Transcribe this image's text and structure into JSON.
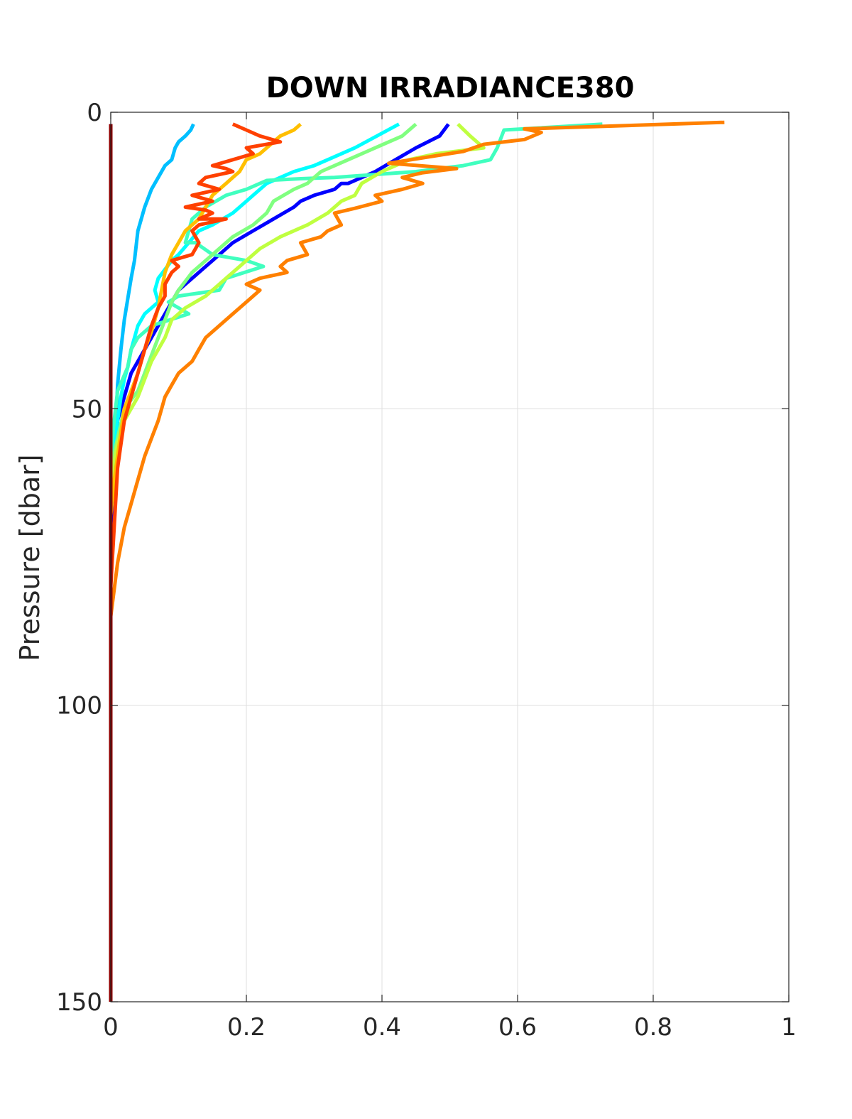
{
  "chart_data": {
    "type": "line",
    "title": "DOWN IRRADIANCE380",
    "xlabel": "",
    "ylabel": "Pressure [dbar]",
    "xlim": [
      0,
      1
    ],
    "ylim": [
      0,
      150
    ],
    "y_reversed": true,
    "grid": true,
    "legend": "none",
    "xticks": [
      "0",
      "0.2",
      "0.4",
      "0.6",
      "0.8",
      "1"
    ],
    "yticks": [
      "0",
      "50",
      "100",
      "150"
    ],
    "series": [
      {
        "color": "#00008f",
        "points": [
          [
            0,
            2
          ],
          [
            0,
            20
          ],
          [
            0,
            50
          ],
          [
            0,
            80
          ],
          [
            0,
            100
          ],
          [
            0,
            120
          ],
          [
            0,
            150
          ]
        ]
      },
      {
        "color": "#0000ff",
        "points": [
          [
            0.498,
            2
          ],
          [
            0.485,
            4
          ],
          [
            0.45,
            6
          ],
          [
            0.42,
            8
          ],
          [
            0.39,
            10
          ],
          [
            0.35,
            12
          ],
          [
            0.34,
            12
          ],
          [
            0.33,
            13
          ],
          [
            0.3,
            14
          ],
          [
            0.28,
            15
          ],
          [
            0.27,
            16
          ],
          [
            0.24,
            18
          ],
          [
            0.21,
            20
          ],
          [
            0.18,
            22
          ],
          [
            0.15,
            25
          ],
          [
            0.12,
            28
          ],
          [
            0.1,
            30
          ],
          [
            0.075,
            35
          ],
          [
            0.05,
            40
          ],
          [
            0.03,
            44
          ],
          [
            0.02,
            48
          ],
          [
            0.01,
            52
          ],
          [
            0.005,
            60
          ],
          [
            0,
            70
          ]
        ]
      },
      {
        "color": "#00bfff",
        "points": [
          [
            0.122,
            2
          ],
          [
            0.118,
            3
          ],
          [
            0.11,
            4
          ],
          [
            0.1,
            5
          ],
          [
            0.095,
            6
          ],
          [
            0.09,
            8
          ],
          [
            0.08,
            9
          ],
          [
            0.075,
            10
          ],
          [
            0.06,
            13
          ],
          [
            0.05,
            16
          ],
          [
            0.04,
            20
          ],
          [
            0.035,
            25
          ],
          [
            0.03,
            28
          ],
          [
            0.02,
            35
          ],
          [
            0.015,
            40
          ],
          [
            0.01,
            46
          ],
          [
            0.008,
            52
          ],
          [
            0.005,
            58
          ],
          [
            0,
            65
          ]
        ]
      },
      {
        "color": "#00ffff",
        "points": [
          [
            0.425,
            2
          ],
          [
            0.36,
            6
          ],
          [
            0.32,
            8
          ],
          [
            0.3,
            9
          ],
          [
            0.27,
            10
          ],
          [
            0.25,
            11
          ],
          [
            0.23,
            12
          ],
          [
            0.21,
            14
          ],
          [
            0.2,
            15
          ],
          [
            0.18,
            17
          ],
          [
            0.15,
            19
          ],
          [
            0.13,
            20
          ],
          [
            0.1,
            24
          ],
          [
            0.09,
            25
          ],
          [
            0.07,
            28
          ],
          [
            0.065,
            30
          ],
          [
            0.07,
            32
          ],
          [
            0.05,
            34
          ],
          [
            0.04,
            36
          ],
          [
            0.03,
            40
          ],
          [
            0.025,
            43
          ],
          [
            0.02,
            45
          ],
          [
            0.015,
            48
          ],
          [
            0.01,
            52
          ],
          [
            0.005,
            56
          ],
          [
            0,
            60
          ]
        ]
      },
      {
        "color": "#40ffbf",
        "points": [
          [
            0.725,
            2
          ],
          [
            0.58,
            3
          ],
          [
            0.57,
            6
          ],
          [
            0.56,
            8
          ],
          [
            0.52,
            9
          ],
          [
            0.45,
            10
          ],
          [
            0.33,
            11
          ],
          [
            0.28,
            11.2
          ],
          [
            0.23,
            11.5
          ],
          [
            0.22,
            12
          ],
          [
            0.2,
            13
          ],
          [
            0.17,
            14
          ],
          [
            0.14,
            16
          ],
          [
            0.12,
            18
          ],
          [
            0.115,
            20
          ],
          [
            0.11,
            22
          ],
          [
            0.125,
            22
          ],
          [
            0.15,
            24
          ],
          [
            0.2,
            25
          ],
          [
            0.225,
            26
          ],
          [
            0.17,
            28
          ],
          [
            0.16,
            30
          ],
          [
            0.1,
            31
          ],
          [
            0.085,
            32
          ],
          [
            0.1,
            33
          ],
          [
            0.115,
            34
          ],
          [
            0.06,
            36
          ],
          [
            0.04,
            38
          ],
          [
            0.03,
            40
          ],
          [
            0.025,
            43
          ],
          [
            0.01,
            47
          ],
          [
            0.005,
            52
          ],
          [
            0,
            58
          ]
        ]
      },
      {
        "color": "#80ff80",
        "points": [
          [
            0.45,
            2
          ],
          [
            0.43,
            4
          ],
          [
            0.39,
            6
          ],
          [
            0.35,
            8
          ],
          [
            0.31,
            10
          ],
          [
            0.29,
            12
          ],
          [
            0.27,
            13
          ],
          [
            0.24,
            15
          ],
          [
            0.23,
            17
          ],
          [
            0.21,
            19
          ],
          [
            0.18,
            21
          ],
          [
            0.16,
            23
          ],
          [
            0.14,
            25
          ],
          [
            0.12,
            27
          ],
          [
            0.1,
            30
          ],
          [
            0.09,
            32
          ],
          [
            0.08,
            35
          ],
          [
            0.07,
            38
          ],
          [
            0.06,
            41
          ],
          [
            0.05,
            44
          ],
          [
            0.04,
            47
          ],
          [
            0.02,
            50
          ],
          [
            0.01,
            55
          ],
          [
            0,
            60
          ]
        ]
      },
      {
        "color": "#bfff40",
        "points": [
          [
            0.512,
            2
          ],
          [
            0.53,
            4
          ],
          [
            0.55,
            6
          ],
          [
            0.48,
            7
          ],
          [
            0.44,
            8
          ],
          [
            0.42,
            9
          ],
          [
            0.4,
            10
          ],
          [
            0.37,
            12
          ],
          [
            0.36,
            14
          ],
          [
            0.34,
            15
          ],
          [
            0.32,
            17
          ],
          [
            0.29,
            19
          ],
          [
            0.25,
            21
          ],
          [
            0.22,
            23
          ],
          [
            0.2,
            25
          ],
          [
            0.18,
            27
          ],
          [
            0.16,
            29
          ],
          [
            0.14,
            31
          ],
          [
            0.11,
            33
          ],
          [
            0.09,
            35
          ],
          [
            0.08,
            38
          ],
          [
            0.07,
            40
          ],
          [
            0.06,
            42
          ],
          [
            0.05,
            45
          ],
          [
            0.04,
            48
          ],
          [
            0.02,
            52
          ],
          [
            0.01,
            56
          ],
          [
            0,
            62
          ]
        ]
      },
      {
        "color": "#ffbf00",
        "points": [
          [
            0.28,
            2
          ],
          [
            0.27,
            3
          ],
          [
            0.25,
            4
          ],
          [
            0.24,
            5
          ],
          [
            0.23,
            6
          ],
          [
            0.22,
            7
          ],
          [
            0.2,
            8
          ],
          [
            0.19,
            10
          ],
          [
            0.18,
            11
          ],
          [
            0.17,
            12
          ],
          [
            0.15,
            14
          ],
          [
            0.14,
            16
          ],
          [
            0.13,
            18
          ],
          [
            0.11,
            20
          ],
          [
            0.1,
            22
          ],
          [
            0.09,
            24
          ],
          [
            0.08,
            27
          ],
          [
            0.075,
            30
          ],
          [
            0.07,
            33
          ],
          [
            0.06,
            37
          ],
          [
            0.05,
            40
          ],
          [
            0.04,
            44
          ],
          [
            0.03,
            47
          ],
          [
            0.02,
            50
          ],
          [
            0.015,
            54
          ],
          [
            0.01,
            58
          ],
          [
            0.005,
            62
          ],
          [
            0,
            68
          ]
        ]
      },
      {
        "color": "#ff8000",
        "points": [
          [
            0.905,
            1.7
          ],
          [
            0.61,
            2.8
          ],
          [
            0.635,
            3.4
          ],
          [
            0.61,
            4.6
          ],
          [
            0.55,
            5.4
          ],
          [
            0.52,
            6.6
          ],
          [
            0.41,
            8.6
          ],
          [
            0.51,
            9.5
          ],
          [
            0.46,
            10.2
          ],
          [
            0.43,
            11
          ],
          [
            0.46,
            12
          ],
          [
            0.43,
            13
          ],
          [
            0.39,
            14
          ],
          [
            0.4,
            15
          ],
          [
            0.36,
            16.2
          ],
          [
            0.33,
            17
          ],
          [
            0.34,
            19
          ],
          [
            0.32,
            20
          ],
          [
            0.31,
            21
          ],
          [
            0.28,
            22
          ],
          [
            0.29,
            24
          ],
          [
            0.26,
            25
          ],
          [
            0.25,
            26
          ],
          [
            0.26,
            27
          ],
          [
            0.22,
            28
          ],
          [
            0.2,
            29
          ],
          [
            0.22,
            30
          ],
          [
            0.2,
            32
          ],
          [
            0.18,
            34
          ],
          [
            0.16,
            36
          ],
          [
            0.14,
            38
          ],
          [
            0.13,
            40
          ],
          [
            0.12,
            42
          ],
          [
            0.1,
            44
          ],
          [
            0.09,
            46
          ],
          [
            0.08,
            48
          ],
          [
            0.07,
            52
          ],
          [
            0.06,
            55
          ],
          [
            0.05,
            58
          ],
          [
            0.04,
            62
          ],
          [
            0.03,
            66
          ],
          [
            0.02,
            70
          ],
          [
            0.01,
            76
          ],
          [
            0,
            85
          ]
        ]
      },
      {
        "color": "#ff4000",
        "points": [
          [
            0.18,
            2
          ],
          [
            0.2,
            3
          ],
          [
            0.22,
            4
          ],
          [
            0.25,
            5
          ],
          [
            0.2,
            6
          ],
          [
            0.21,
            7
          ],
          [
            0.18,
            8
          ],
          [
            0.15,
            9
          ],
          [
            0.17,
            9.5
          ],
          [
            0.18,
            10
          ],
          [
            0.14,
            11
          ],
          [
            0.13,
            12
          ],
          [
            0.16,
            13
          ],
          [
            0.12,
            14
          ],
          [
            0.15,
            15
          ],
          [
            0.11,
            16
          ],
          [
            0.14,
            16.5
          ],
          [
            0.15,
            17
          ],
          [
            0.13,
            18
          ],
          [
            0.17,
            18
          ],
          [
            0.13,
            19
          ],
          [
            0.12,
            20
          ],
          [
            0.13,
            22
          ],
          [
            0.12,
            24
          ],
          [
            0.09,
            25
          ],
          [
            0.1,
            26
          ],
          [
            0.09,
            27
          ],
          [
            0.08,
            29
          ],
          [
            0.08,
            31
          ],
          [
            0.07,
            33
          ],
          [
            0.06,
            36
          ],
          [
            0.05,
            40
          ],
          [
            0.04,
            44
          ],
          [
            0.03,
            48
          ],
          [
            0.02,
            52
          ],
          [
            0.015,
            56
          ],
          [
            0.01,
            60
          ],
          [
            0.005,
            70
          ],
          [
            0,
            80
          ]
        ]
      },
      {
        "color": "#8f0000",
        "points": [
          [
            0,
            2
          ],
          [
            0,
            150
          ]
        ]
      }
    ]
  }
}
